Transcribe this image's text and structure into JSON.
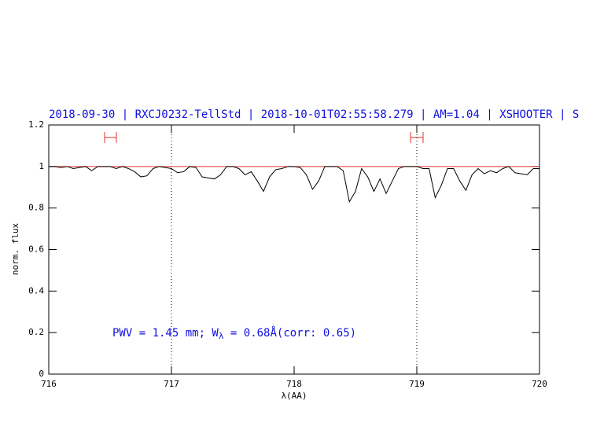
{
  "chart_data": {
    "type": "line",
    "title": "2018-09-30 | RXCJ0232-TellStd | 2018-10-01T02:55:58.279 | AM=1.04 | XSHOOTER | S",
    "x_label": "λ(AA)",
    "y_label": "norm. flux",
    "annotation": [
      "PWV = 1.45 mm; W",
      "λ",
      " = 0.68Å(corr: 0.65)"
    ],
    "xlim": [
      716,
      720
    ],
    "ylim": [
      0,
      1.2
    ],
    "xticks": [
      716,
      717,
      718,
      719,
      720
    ],
    "yticks": [
      0,
      0.2,
      0.4,
      0.6,
      0.8,
      1,
      1.2
    ],
    "vlines": [
      717,
      719
    ],
    "reference_line": {
      "value": 1,
      "color": "#e03030"
    },
    "ranges": [
      {
        "from": 716.455,
        "to": 716.551,
        "y": 1.14
      },
      {
        "from": 718.949,
        "to": 719.051,
        "y": 1.14
      }
    ],
    "series": [
      {
        "name": "flux",
        "color": "#000000",
        "x": [
          716,
          716.05,
          716.1,
          716.15,
          716.2,
          716.25,
          716.3,
          716.35,
          716.4,
          716.45,
          716.5,
          716.55,
          716.6,
          716.65,
          716.7,
          716.75,
          716.8,
          716.85,
          716.9,
          716.95,
          717,
          717.05,
          717.1,
          717.15,
          717.2,
          717.25,
          717.3,
          717.35,
          717.4,
          717.45,
          717.5,
          717.55,
          717.6,
          717.65,
          717.7,
          717.75,
          717.8,
          717.85,
          717.9,
          717.95,
          718,
          718.05,
          718.1,
          718.15,
          718.2,
          718.25,
          718.3,
          718.35,
          718.4,
          718.45,
          718.5,
          718.55,
          718.6,
          718.65,
          718.7,
          718.75,
          718.8,
          718.85,
          718.9,
          718.95,
          719,
          719.05,
          719.1,
          719.15,
          719.2,
          719.25,
          719.3,
          719.35,
          719.4,
          719.45,
          719.5,
          719.55,
          719.6,
          719.65,
          719.7,
          719.75,
          719.8,
          719.85,
          719.9,
          719.95,
          720
        ],
        "values": [
          1,
          1,
          0.995,
          1,
          0.99,
          0.995,
          1,
          0.98,
          1,
          1,
          1,
          0.99,
          1,
          0.99,
          0.975,
          0.95,
          0.955,
          0.99,
          1,
          0.995,
          0.99,
          0.97,
          0.975,
          1,
          0.995,
          0.95,
          0.945,
          0.94,
          0.96,
          1,
          1,
          0.99,
          0.96,
          0.975,
          0.93,
          0.88,
          0.95,
          0.985,
          0.99,
          1,
          1,
          0.995,
          0.96,
          0.89,
          0.93,
          1,
          1,
          1,
          0.98,
          0.83,
          0.88,
          0.99,
          0.95,
          0.88,
          0.94,
          0.87,
          0.93,
          0.99,
          1,
          1,
          1,
          0.99,
          0.99,
          0.85,
          0.91,
          0.99,
          0.99,
          0.93,
          0.885,
          0.96,
          0.99,
          0.965,
          0.98,
          0.97,
          0.99,
          1,
          0.97,
          0.965,
          0.96,
          0.99,
          0.99
        ]
      }
    ]
  }
}
